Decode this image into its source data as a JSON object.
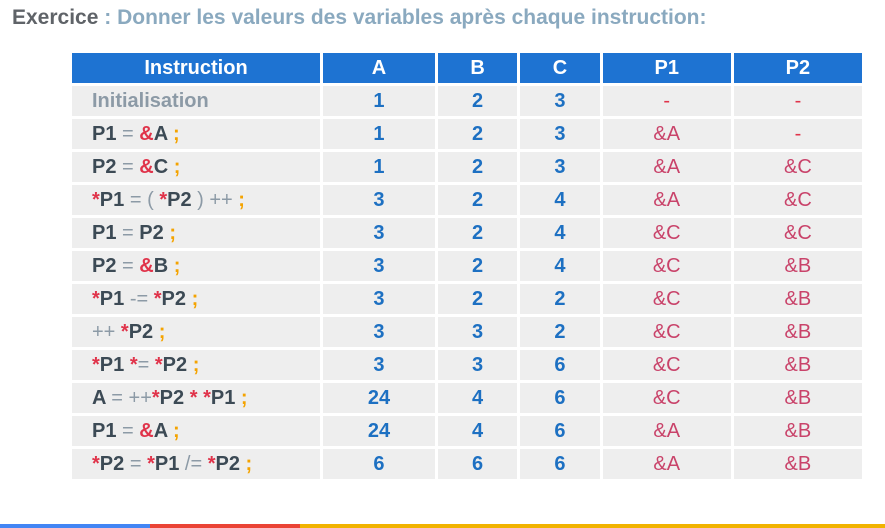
{
  "title": {
    "label": "Exercice",
    "text": " : Donner les valeurs des variables après chaque instruction:"
  },
  "headers": [
    "Instruction",
    "A",
    "B",
    "C",
    "P1",
    "P2"
  ],
  "rows": [
    {
      "instruction": "Initialisation",
      "a": "1",
      "b": "2",
      "c": "3",
      "p1": "-",
      "p2": "-"
    },
    {
      "instruction": "P1 = &A ;",
      "a": "1",
      "b": "2",
      "c": "3",
      "p1": "&A",
      "p2": "-"
    },
    {
      "instruction": "P2 = &C ;",
      "a": "1",
      "b": "2",
      "c": "3",
      "p1": "&A",
      "p2": "&C"
    },
    {
      "instruction": "*P1 = ( *P2 ) ++ ;",
      "a": "3",
      "b": "2",
      "c": "4",
      "p1": "&A",
      "p2": "&C"
    },
    {
      "instruction": "P1 = P2 ;",
      "a": "3",
      "b": "2",
      "c": "4",
      "p1": "&C",
      "p2": "&C"
    },
    {
      "instruction": "P2 = &B ;",
      "a": "3",
      "b": "2",
      "c": "4",
      "p1": "&C",
      "p2": "&B"
    },
    {
      "instruction": "*P1 -= *P2 ;",
      "a": "3",
      "b": "2",
      "c": "2",
      "p1": "&C",
      "p2": "&B"
    },
    {
      "instruction": "++ *P2 ;",
      "a": "3",
      "b": "3",
      "c": "2",
      "p1": "&C",
      "p2": "&B"
    },
    {
      "instruction": "*P1 *= *P2 ;",
      "a": "3",
      "b": "3",
      "c": "6",
      "p1": "&C",
      "p2": "&B"
    },
    {
      "instruction": "A = ++*P2 * *P1 ;",
      "a": "24",
      "b": "4",
      "c": "6",
      "p1": "&C",
      "p2": "&B"
    },
    {
      "instruction": "P1 = &A ;",
      "a": "24",
      "b": "4",
      "c": "6",
      "p1": "&A",
      "p2": "&B"
    },
    {
      "instruction": "*P2 = *P1 /= *P2 ;",
      "a": "6",
      "b": "6",
      "c": "6",
      "p1": "&A",
      "p2": "&B"
    }
  ],
  "colors": {
    "header_bg": "#1e73d2",
    "cell_bg": "#eeeeee",
    "number": "#1d70c2",
    "pointer": "#c9436a",
    "ampersand_star": "#e0334a",
    "semicolon": "#f4a300",
    "operator": "#8c9aa6",
    "variable": "#3c4a55"
  }
}
